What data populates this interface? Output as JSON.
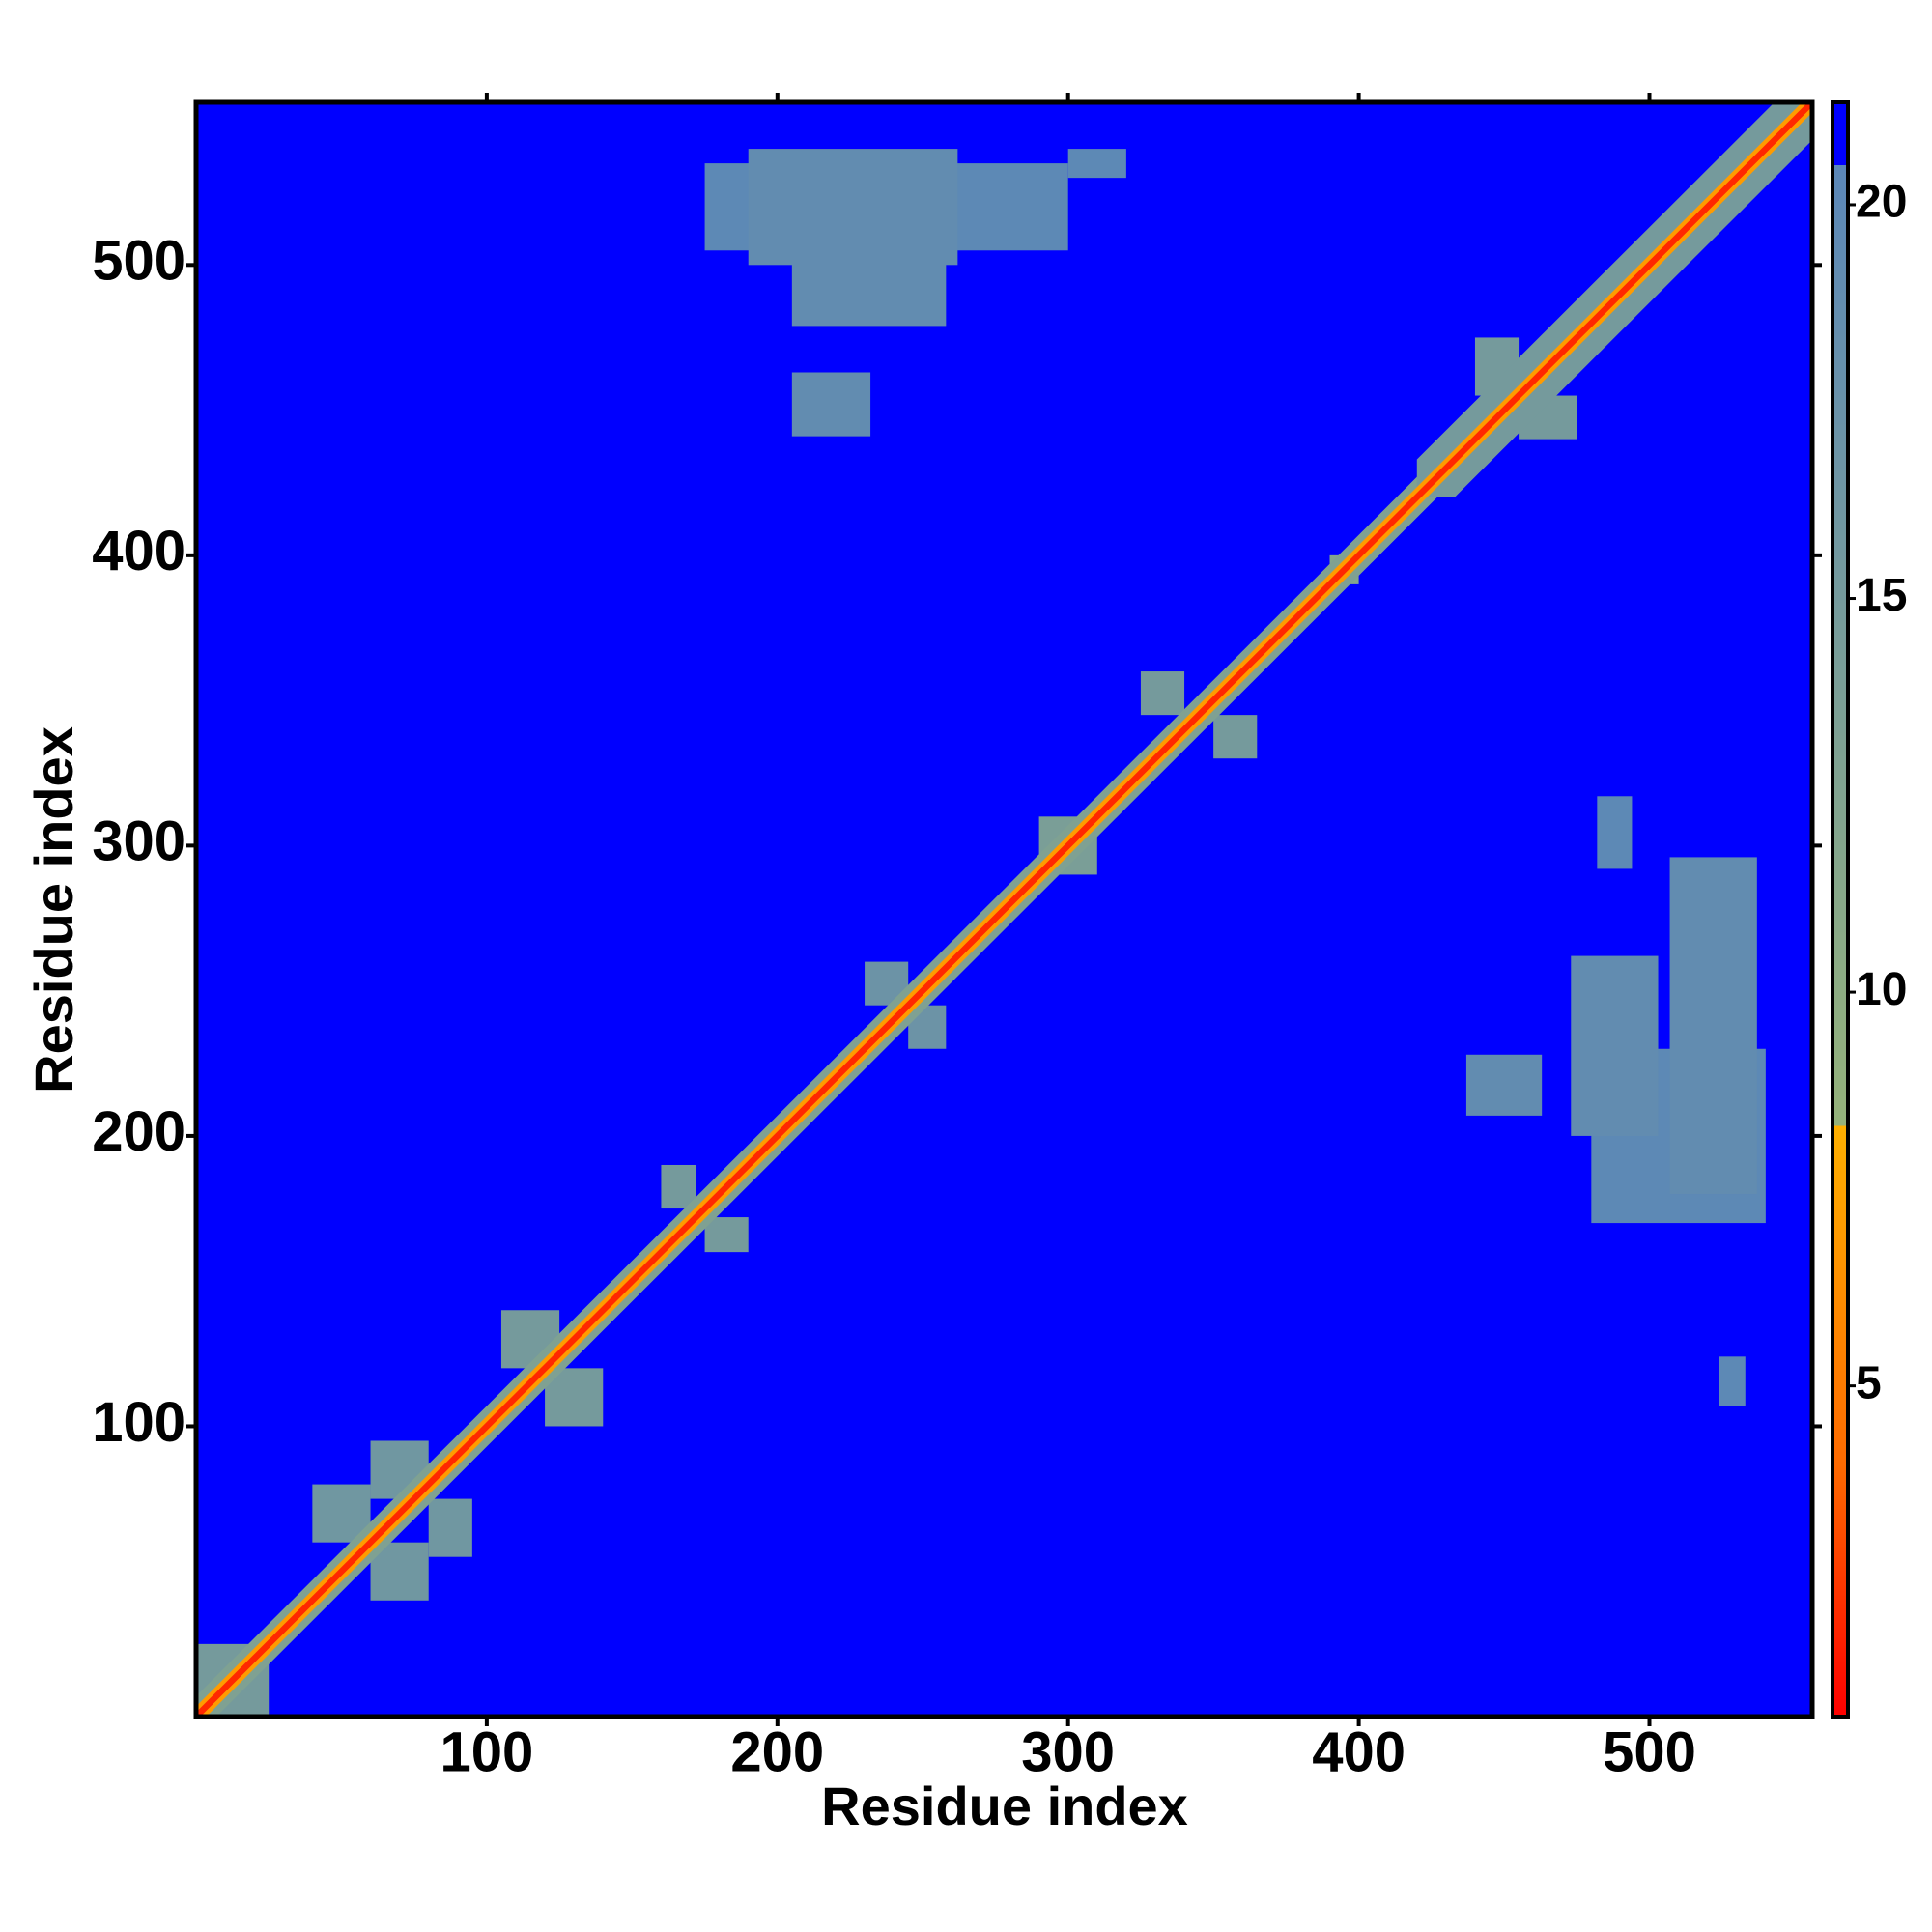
{
  "chart_data": {
    "type": "heatmap",
    "xlabel": "Residue index",
    "ylabel": "Residue index",
    "xlim": [
      0,
      556
    ],
    "ylim": [
      0,
      556
    ],
    "xticks": [
      100,
      200,
      300,
      400,
      500
    ],
    "yticks": [
      100,
      200,
      300,
      400,
      500
    ],
    "clim": [
      0.8,
      21.3
    ],
    "cticks": [
      5,
      10,
      15,
      20
    ],
    "colorscale": [
      [
        0.8,
        "#ff0000"
      ],
      [
        4,
        "#ff6a00"
      ],
      [
        8.3,
        "#ffb000"
      ],
      [
        8.3,
        "#95b27a"
      ],
      [
        20.5,
        "#5b87b8"
      ],
      [
        20.5,
        "#0000ff"
      ],
      [
        21.3,
        "#0000ff"
      ]
    ],
    "cells": [
      {
        "x": [
          175,
          300
        ],
        "y": [
          505,
          535
        ],
        "value": 20
      },
      {
        "x": [
          190,
          262
        ],
        "y": [
          500,
          540
        ],
        "value": 19
      },
      {
        "x": [
          205,
          258
        ],
        "y": [
          479,
          505
        ],
        "value": 19
      },
      {
        "x": [
          205,
          232
        ],
        "y": [
          441,
          463
        ],
        "value": 19
      },
      {
        "x": [
          300,
          320
        ],
        "y": [
          530,
          540
        ],
        "value": 20
      },
      {
        "x": [
          480,
          540
        ],
        "y": [
          170,
          230
        ],
        "value": 20
      },
      {
        "x": [
          507,
          537
        ],
        "y": [
          180,
          296
        ],
        "value": 19
      },
      {
        "x": [
          473,
          503
        ],
        "y": [
          200,
          262
        ],
        "value": 19
      },
      {
        "x": [
          437,
          463
        ],
        "y": [
          207,
          228
        ],
        "value": 19
      },
      {
        "x": [
          482,
          494
        ],
        "y": [
          292,
          317
        ],
        "value": 20
      },
      {
        "x": [
          524,
          533
        ],
        "y": [
          107,
          124
        ],
        "value": 20
      },
      {
        "x": [
          0,
          25
        ],
        "y": [
          0,
          25
        ],
        "value": 15
      },
      {
        "x": [
          40,
          60
        ],
        "y": [
          60,
          80
        ],
        "value": 16
      },
      {
        "x": [
          60,
          80
        ],
        "y": [
          75,
          95
        ],
        "value": 16
      },
      {
        "x": [
          60,
          80
        ],
        "y": [
          40,
          60
        ],
        "value": 16
      },
      {
        "x": [
          80,
          95
        ],
        "y": [
          55,
          75
        ],
        "value": 16
      },
      {
        "x": [
          105,
          125
        ],
        "y": [
          120,
          140
        ],
        "value": 15
      },
      {
        "x": [
          120,
          140
        ],
        "y": [
          100,
          120
        ],
        "value": 15
      },
      {
        "x": [
          160,
          172
        ],
        "y": [
          175,
          190
        ],
        "value": 15
      },
      {
        "x": [
          175,
          190
        ],
        "y": [
          160,
          172
        ],
        "value": 15
      },
      {
        "x": [
          230,
          245
        ],
        "y": [
          245,
          260
        ],
        "value": 17
      },
      {
        "x": [
          245,
          258
        ],
        "y": [
          230,
          245
        ],
        "value": 17
      },
      {
        "x": [
          290,
          310
        ],
        "y": [
          290,
          310
        ],
        "value": 14
      },
      {
        "x": [
          325,
          340
        ],
        "y": [
          345,
          360
        ],
        "value": 15
      },
      {
        "x": [
          350,
          365
        ],
        "y": [
          330,
          345
        ],
        "value": 15
      },
      {
        "x": [
          390,
          400
        ],
        "y": [
          390,
          400
        ],
        "value": 12
      },
      {
        "x": [
          440,
          455
        ],
        "y": [
          455,
          475
        ],
        "value": 15
      },
      {
        "x": [
          455,
          475
        ],
        "y": [
          440,
          455
        ],
        "value": 15
      }
    ],
    "diagonal_bands": [
      {
        "start": 0,
        "end": 556,
        "halfwidth": 7,
        "value": 13
      },
      {
        "start": 420,
        "end": 556,
        "halfwidth": 13,
        "value": 15
      },
      {
        "start": 0,
        "end": 556,
        "halfwidth": 3.5,
        "value": 7
      },
      {
        "start": 0,
        "end": 556,
        "halfwidth": 1.5,
        "value": 2
      }
    ]
  }
}
